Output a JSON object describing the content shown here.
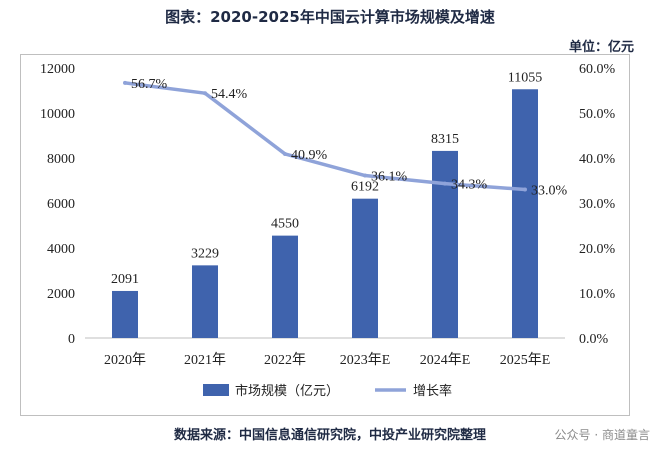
{
  "header": {
    "title": "图表：2020-2025年中国云计算市场规模及增速",
    "unit": "单位：亿元"
  },
  "footer": {
    "source": "数据来源：中国信息通信研究院，中投产业研究院整理",
    "watermark": "公众号 · 商道童言"
  },
  "chart_data": {
    "type": "bar",
    "categories": [
      "2020年",
      "2021年",
      "2022年",
      "2023年E",
      "2024年E",
      "2025年E"
    ],
    "series": [
      {
        "name": "市场规模（亿元）",
        "type": "bar",
        "axis": "left",
        "values": [
          2091,
          3229,
          4550,
          6192,
          8315,
          11055
        ],
        "labels": [
          "2091",
          "3229",
          "4550",
          "6192",
          "8315",
          "11055"
        ],
        "color": "#3f63ad"
      },
      {
        "name": "增长率",
        "type": "line",
        "axis": "right",
        "values": [
          56.7,
          54.4,
          40.9,
          36.1,
          34.3,
          33.0
        ],
        "labels": [
          "56.7%",
          "54.4%",
          "40.9%",
          "36.1%",
          "34.3%",
          "33.0%"
        ],
        "color": "#8fa3d9"
      }
    ],
    "y_left": {
      "min": 0,
      "max": 12000,
      "ticks": [
        "0",
        "2000",
        "4000",
        "6000",
        "8000",
        "10000",
        "12000"
      ]
    },
    "y_right": {
      "min": 0,
      "max": 60,
      "ticks": [
        "0.0%",
        "10.0%",
        "20.0%",
        "30.0%",
        "40.0%",
        "50.0%",
        "60.0%"
      ]
    },
    "grid": false,
    "legend": "bottom"
  }
}
